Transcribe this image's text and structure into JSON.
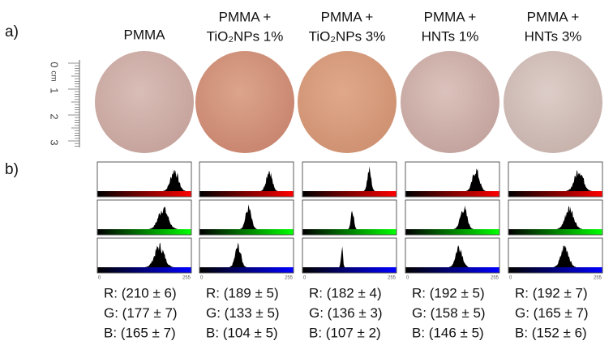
{
  "panel_labels": [
    "a)",
    "b)"
  ],
  "ruler": {
    "unit": "cm",
    "labels": [
      "0",
      "1",
      "2",
      "3"
    ]
  },
  "histogram_axis": [
    "0",
    "255"
  ],
  "columns": [
    {
      "header": [
        "PMMA"
      ],
      "stats": [
        "R: (210 ± 6)",
        "G: (177 ± 7)",
        "B: (165 ± 7)"
      ]
    },
    {
      "header": [
        "PMMA +",
        "TiO₂NPs 1%"
      ],
      "stats": [
        "R: (189 ± 5)",
        "G: (133 ± 5)",
        "B: (104 ± 5)"
      ]
    },
    {
      "header": [
        "PMMA +",
        "TiO₂NPs 3%"
      ],
      "stats": [
        "R: (182 ± 4)",
        "G: (136 ± 3)",
        "B: (107 ± 2)"
      ]
    },
    {
      "header": [
        "PMMA +",
        "HNTs 1%"
      ],
      "stats": [
        "R: (192 ± 5)",
        "G: (158 ± 5)",
        "B: (146 ± 5)"
      ]
    },
    {
      "header": [
        "PMMA +",
        "HNTs 3%"
      ],
      "stats": [
        "R: (192 ± 7)",
        "G: (165 ± 7)",
        "B: (152 ± 6)"
      ]
    }
  ]
}
